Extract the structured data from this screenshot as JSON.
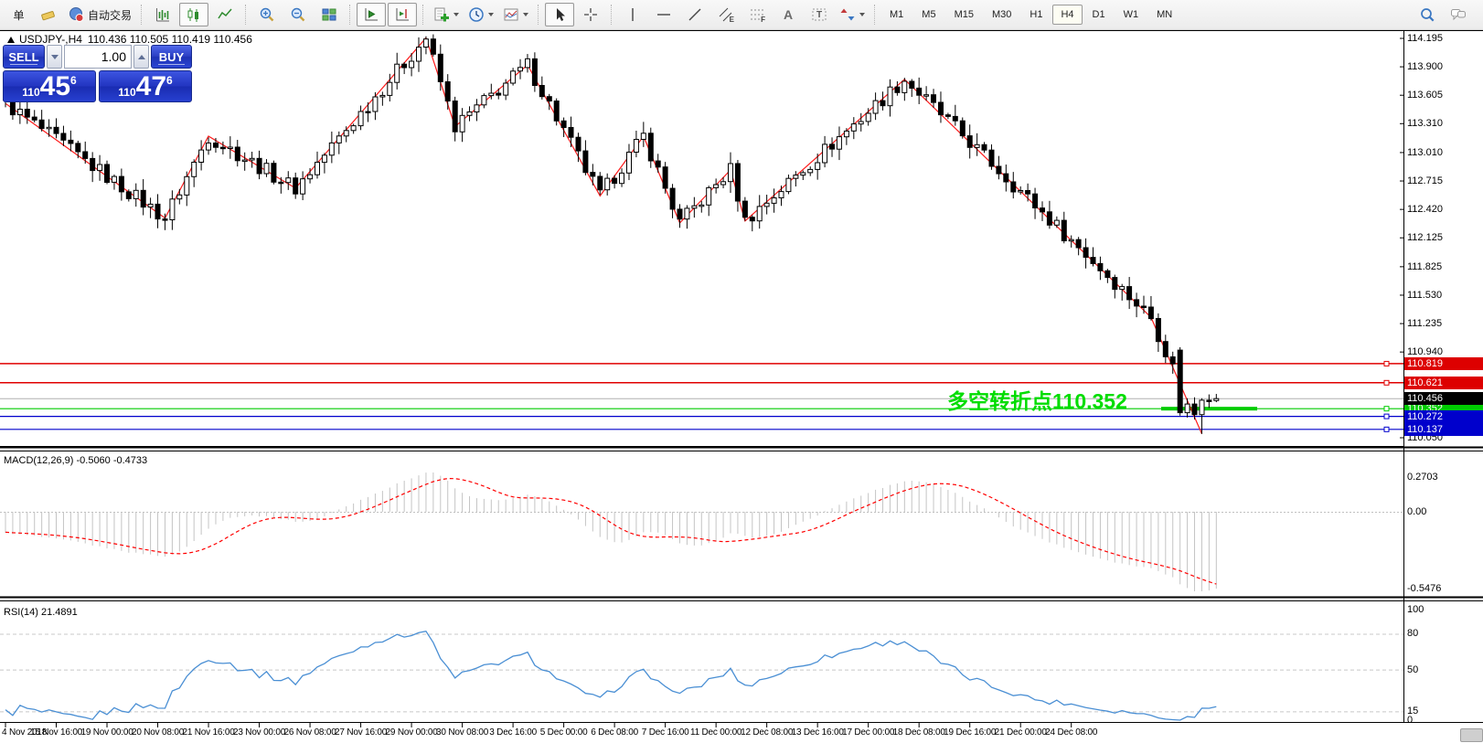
{
  "toolbar": {
    "items": [
      {
        "name": "new-order-button",
        "label": "单"
      },
      {
        "name": "eraser-button",
        "icon": "eraser"
      },
      {
        "name": "autotrade-button",
        "icon": "autotrade",
        "label": "自动交易"
      },
      {
        "sep": true
      },
      {
        "name": "bar-chart-button",
        "icon": "bars-chart"
      },
      {
        "name": "candlestick-chart-button",
        "icon": "candles-chart",
        "active": true
      },
      {
        "name": "line-chart-button",
        "icon": "line-chart"
      },
      {
        "sep": true
      },
      {
        "name": "zoom-in-button",
        "icon": "zoom-in"
      },
      {
        "name": "zoom-out-button",
        "icon": "zoom-out"
      },
      {
        "name": "tile-windows-button",
        "icon": "tile-windows"
      },
      {
        "sep": true
      },
      {
        "name": "auto-scroll-button",
        "icon": "auto-scroll",
        "active": true
      },
      {
        "name": "chart-shift-button",
        "icon": "chart-shift",
        "active": true
      },
      {
        "sep": true
      },
      {
        "name": "indicators-button",
        "icon": "indicators",
        "caret": true
      },
      {
        "name": "periods-button",
        "icon": "clock",
        "caret": true
      },
      {
        "name": "templates-button",
        "icon": "template",
        "caret": true
      },
      {
        "sep": true
      },
      {
        "name": "cursor-button",
        "icon": "cursor",
        "active": true
      },
      {
        "name": "crosshair-button",
        "icon": "crosshair"
      },
      {
        "sep": true
      },
      {
        "name": "vertical-line-button",
        "icon": "vertical-line"
      },
      {
        "name": "horizontal-line-button",
        "icon": "horizontal-line"
      },
      {
        "name": "trendline-button",
        "icon": "trend-line"
      },
      {
        "name": "channel-button",
        "icon": "channel",
        "glyph": "E"
      },
      {
        "name": "fibonacci-button",
        "icon": "fibonacci",
        "glyph": "F"
      },
      {
        "name": "text-button",
        "glyphMain": "A"
      },
      {
        "name": "text-label-button",
        "icon": "text-label",
        "glyphOver": "T"
      },
      {
        "name": "arrows-button",
        "icon": "arrows",
        "caret": true
      },
      {
        "sep": true
      }
    ],
    "timeframes": [
      {
        "label": "M1"
      },
      {
        "label": "M5"
      },
      {
        "label": "M15"
      },
      {
        "label": "M30"
      },
      {
        "label": "H1"
      },
      {
        "label": "H4",
        "active": true
      },
      {
        "label": "D1"
      },
      {
        "label": "W1"
      },
      {
        "label": "MN"
      }
    ],
    "right_items": [
      {
        "name": "search-button",
        "icon": "search"
      },
      {
        "name": "chat-button",
        "icon": "chat"
      }
    ]
  },
  "chart_header": {
    "symbol": "USDJPY-,H4",
    "ohlc": "110.436 110.505 110.419 110.456"
  },
  "trade_panel": {
    "sell_label": "SELL",
    "buy_label": "BUY",
    "volume": "1.00",
    "sell_price": {
      "prefix": "110",
      "big": "45",
      "sup": "6"
    },
    "buy_price": {
      "prefix": "110",
      "big": "47",
      "sup": "6"
    }
  },
  "annotation": {
    "text": "多空转折点110.352",
    "color": "#00dd00",
    "price": 110.352
  },
  "price_axis": {
    "plain_labels": [
      "114.195",
      "113.900",
      "113.605",
      "113.310",
      "113.010",
      "112.715",
      "112.420",
      "112.125",
      "111.825",
      "111.530",
      "111.235",
      "110.940",
      "110.050"
    ]
  },
  "price_lines": [
    {
      "value": "110.819",
      "price": 110.819,
      "color": "#e00000",
      "tag_bg": "#dd0000"
    },
    {
      "value": "110.621",
      "price": 110.621,
      "color": "#e00000",
      "tag_bg": "#dd0000"
    },
    {
      "value": "110.352",
      "price": 110.352,
      "color": "#00cc00",
      "tag_bg": "#00cc00",
      "thick_segment": true
    },
    {
      "value": "110.272",
      "price": 110.272,
      "color": "#0000cc",
      "tag_bg": "#0000cc"
    },
    {
      "value": "110.137",
      "price": 110.137,
      "color": "#0000cc",
      "tag_bg": "#0000cc"
    }
  ],
  "current_price": {
    "value": "110.456",
    "price": 110.456,
    "tag_bg": "#000000",
    "line_color": "#b0b0b0"
  },
  "indicators_panel": {
    "macd": {
      "name": "MACD(12,26,9)",
      "values": "-0.5060 -0.4733",
      "axis_labels": [
        {
          "text": "0.2703",
          "v": 0.2703
        },
        {
          "text": "0.00",
          "v": 0.0
        },
        {
          "text": "-0.5476",
          "v": -0.5476
        }
      ]
    },
    "rsi": {
      "name": "RSI(14)",
      "value": "21.4891",
      "axis_labels": [
        {
          "text": "100",
          "v": 100
        },
        {
          "text": "80",
          "v": 80
        },
        {
          "text": "50",
          "v": 50
        },
        {
          "text": "15",
          "v": 15
        },
        {
          "text": "0",
          "v": 0
        }
      ],
      "grid_levels": [
        80,
        50,
        15
      ]
    }
  },
  "time_axis": {
    "labels": [
      "4 Nov 2018",
      "15 Nov 16:00",
      "19 Nov 00:00",
      "20 Nov 08:00",
      "21 Nov 16:00",
      "23 Nov 00:00",
      "26 Nov 08:00",
      "27 Nov 16:00",
      "29 Nov 00:00",
      "30 Nov 08:00",
      "3 Dec 16:00",
      "5 Dec 00:00",
      "6 Dec 08:00",
      "7 Dec 16:00",
      "11 Dec 00:00",
      "12 Dec 08:00",
      "13 Dec 16:00",
      "17 Dec 00:00",
      "18 Dec 08:00",
      "19 Dec 16:00",
      "21 Dec 00:00",
      "24 Dec 08:00"
    ]
  },
  "chart_data": {
    "type": "candlestick",
    "symbol": "USDJPY",
    "period": "H4",
    "bars": 168,
    "price_axis_range": [
      110.05,
      114.195
    ],
    "ohlc_current": {
      "open": 110.436,
      "high": 110.505,
      "low": 110.419,
      "close": 110.456
    },
    "zigzag_pivots": [
      {
        "bar": 0,
        "price": 113.52
      },
      {
        "bar": 22,
        "price": 112.33
      },
      {
        "bar": 28,
        "price": 113.18
      },
      {
        "bar": 40,
        "price": 112.64
      },
      {
        "bar": 58,
        "price": 114.2
      },
      {
        "bar": 62,
        "price": 113.28
      },
      {
        "bar": 72,
        "price": 113.92
      },
      {
        "bar": 82,
        "price": 112.56
      },
      {
        "bar": 88,
        "price": 113.18
      },
      {
        "bar": 93,
        "price": 112.28
      },
      {
        "bar": 100,
        "price": 112.83
      },
      {
        "bar": 102,
        "price": 112.3
      },
      {
        "bar": 124,
        "price": 113.77
      },
      {
        "bar": 158,
        "price": 111.3
      },
      {
        "bar": 165,
        "price": 110.09
      }
    ],
    "key_bars": [
      {
        "bar": 162,
        "o": 110.96,
        "h": 110.99,
        "l": 110.28,
        "c": 110.31
      },
      {
        "bar": 163,
        "o": 110.31,
        "h": 110.46,
        "l": 110.26,
        "c": 110.4
      },
      {
        "bar": 164,
        "o": 110.4,
        "h": 110.47,
        "l": 110.24,
        "c": 110.29
      },
      {
        "bar": 165,
        "o": 110.29,
        "h": 110.46,
        "l": 110.09,
        "c": 110.44
      },
      {
        "bar": 166,
        "o": 110.44,
        "h": 110.5,
        "l": 110.36,
        "c": 110.43
      }
    ],
    "horizontal_levels": [
      110.819,
      110.621,
      110.456,
      110.352,
      110.272,
      110.137
    ],
    "indicators": [
      {
        "name": "MACD",
        "params": [
          12,
          26,
          9
        ],
        "last_values": [
          -0.506,
          -0.4733
        ],
        "display_range": [
          -0.5476,
          0.2703
        ]
      },
      {
        "name": "RSI",
        "params": [
          14
        ],
        "last_value": 21.4891,
        "levels": [
          80,
          50,
          15
        ]
      }
    ]
  }
}
